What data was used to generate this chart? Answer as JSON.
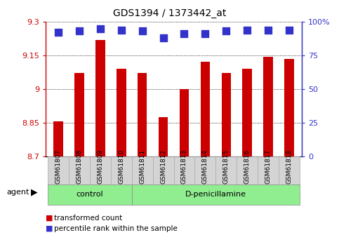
{
  "title": "GDS1394 / 1373442_at",
  "categories": [
    "GSM61807",
    "GSM61808",
    "GSM61809",
    "GSM61810",
    "GSM61811",
    "GSM61812",
    "GSM61813",
    "GSM61814",
    "GSM61815",
    "GSM61816",
    "GSM61817",
    "GSM61818"
  ],
  "bar_values": [
    8.855,
    9.07,
    9.22,
    9.09,
    9.07,
    8.875,
    9.0,
    9.12,
    9.07,
    9.09,
    9.145,
    9.135
  ],
  "percentile_values": [
    92,
    93,
    95,
    94,
    93,
    88,
    91,
    91,
    93,
    94,
    94,
    94
  ],
  "ylim": [
    8.7,
    9.3
  ],
  "y_ticks": [
    8.7,
    8.85,
    9.0,
    9.15,
    9.3
  ],
  "y_tick_labels": [
    "8.7",
    "8.85",
    "9",
    "9.15",
    "9.3"
  ],
  "right_y_ticks": [
    0,
    25,
    50,
    75,
    100
  ],
  "right_y_tick_labels": [
    "0",
    "25",
    "50",
    "75",
    "100%"
  ],
  "groups": [
    {
      "label": "control",
      "start": 0,
      "end": 3
    },
    {
      "label": "D-penicillamine",
      "start": 4,
      "end": 11
    }
  ],
  "bar_color": "#cc0000",
  "percentile_color": "#3333cc",
  "bar_width": 0.45,
  "agent_label": "agent",
  "legend_items": [
    {
      "color": "#cc0000",
      "label": "transformed count"
    },
    {
      "color": "#3333cc",
      "label": "percentile rank within the sample"
    }
  ],
  "background_color": "#ffffff",
  "plot_bg_color": "#ffffff",
  "sample_box_color": "#d4d4d4",
  "group_box_color": "#90ee90",
  "marker_size": 45
}
